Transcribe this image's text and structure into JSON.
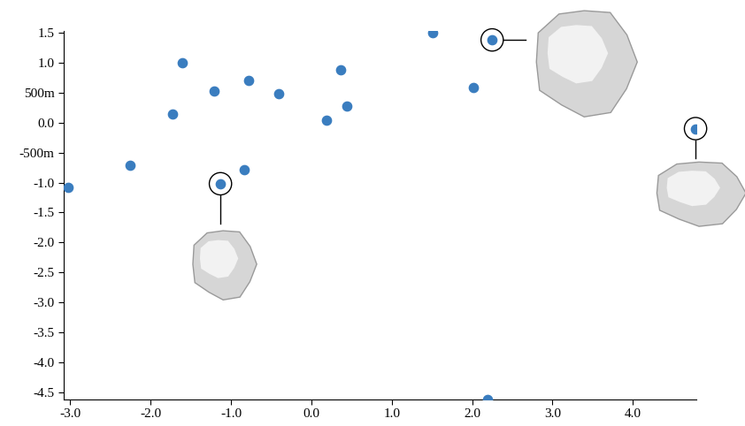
{
  "chart_data": {
    "type": "scatter",
    "series": [
      {
        "color": "#3a7dbf",
        "x": [
          -3.03,
          -2.25,
          -1.73,
          -1.61,
          -1.21,
          -0.78,
          -0.83,
          -0.41,
          0.19,
          0.36,
          0.44,
          1.51,
          2.02,
          2.19
        ],
        "values": [
          -1.08,
          -0.71,
          0.15,
          1.0,
          0.53,
          0.71,
          -0.79,
          0.48,
          0.04,
          0.88,
          0.28,
          1.5,
          0.59,
          -4.62
        ]
      },
      {
        "color": "#3a7dbf",
        "marker": "circled",
        "x": [
          -1.13,
          2.25,
          4.78
        ],
        "values": [
          -1.02,
          1.38,
          -0.1
        ]
      }
    ],
    "xlim": [
      -3.08,
      4.79
    ],
    "ylim": [
      -4.62,
      1.53
    ],
    "xticks": [
      {
        "value": -3,
        "label": "-3.0"
      },
      {
        "value": -2,
        "label": "-2.0"
      },
      {
        "value": -1,
        "label": "-1.0"
      },
      {
        "value": 0,
        "label": "0.0"
      },
      {
        "value": 1,
        "label": "1.0"
      },
      {
        "value": 2,
        "label": "2.0"
      },
      {
        "value": 3,
        "label": "3.0"
      },
      {
        "value": 4,
        "label": "4.0"
      }
    ],
    "yticks": [
      {
        "value": 1.5,
        "label": "1.5"
      },
      {
        "value": 1,
        "label": "1.0"
      },
      {
        "value": 0.5,
        "label": "500m"
      },
      {
        "value": 0,
        "label": "0.0"
      },
      {
        "value": -0.5,
        "label": "-500m"
      },
      {
        "value": -1,
        "label": "-1.0"
      },
      {
        "value": -1.5,
        "label": "-1.5"
      },
      {
        "value": -2,
        "label": "-2.0"
      },
      {
        "value": -2.5,
        "label": "-2.5"
      },
      {
        "value": -3,
        "label": "-3.0"
      },
      {
        "value": -3.5,
        "label": "-3.5"
      },
      {
        "value": -4,
        "label": "-4.0"
      },
      {
        "value": -4.5,
        "label": "-4.5"
      }
    ],
    "grid": false
  }
}
